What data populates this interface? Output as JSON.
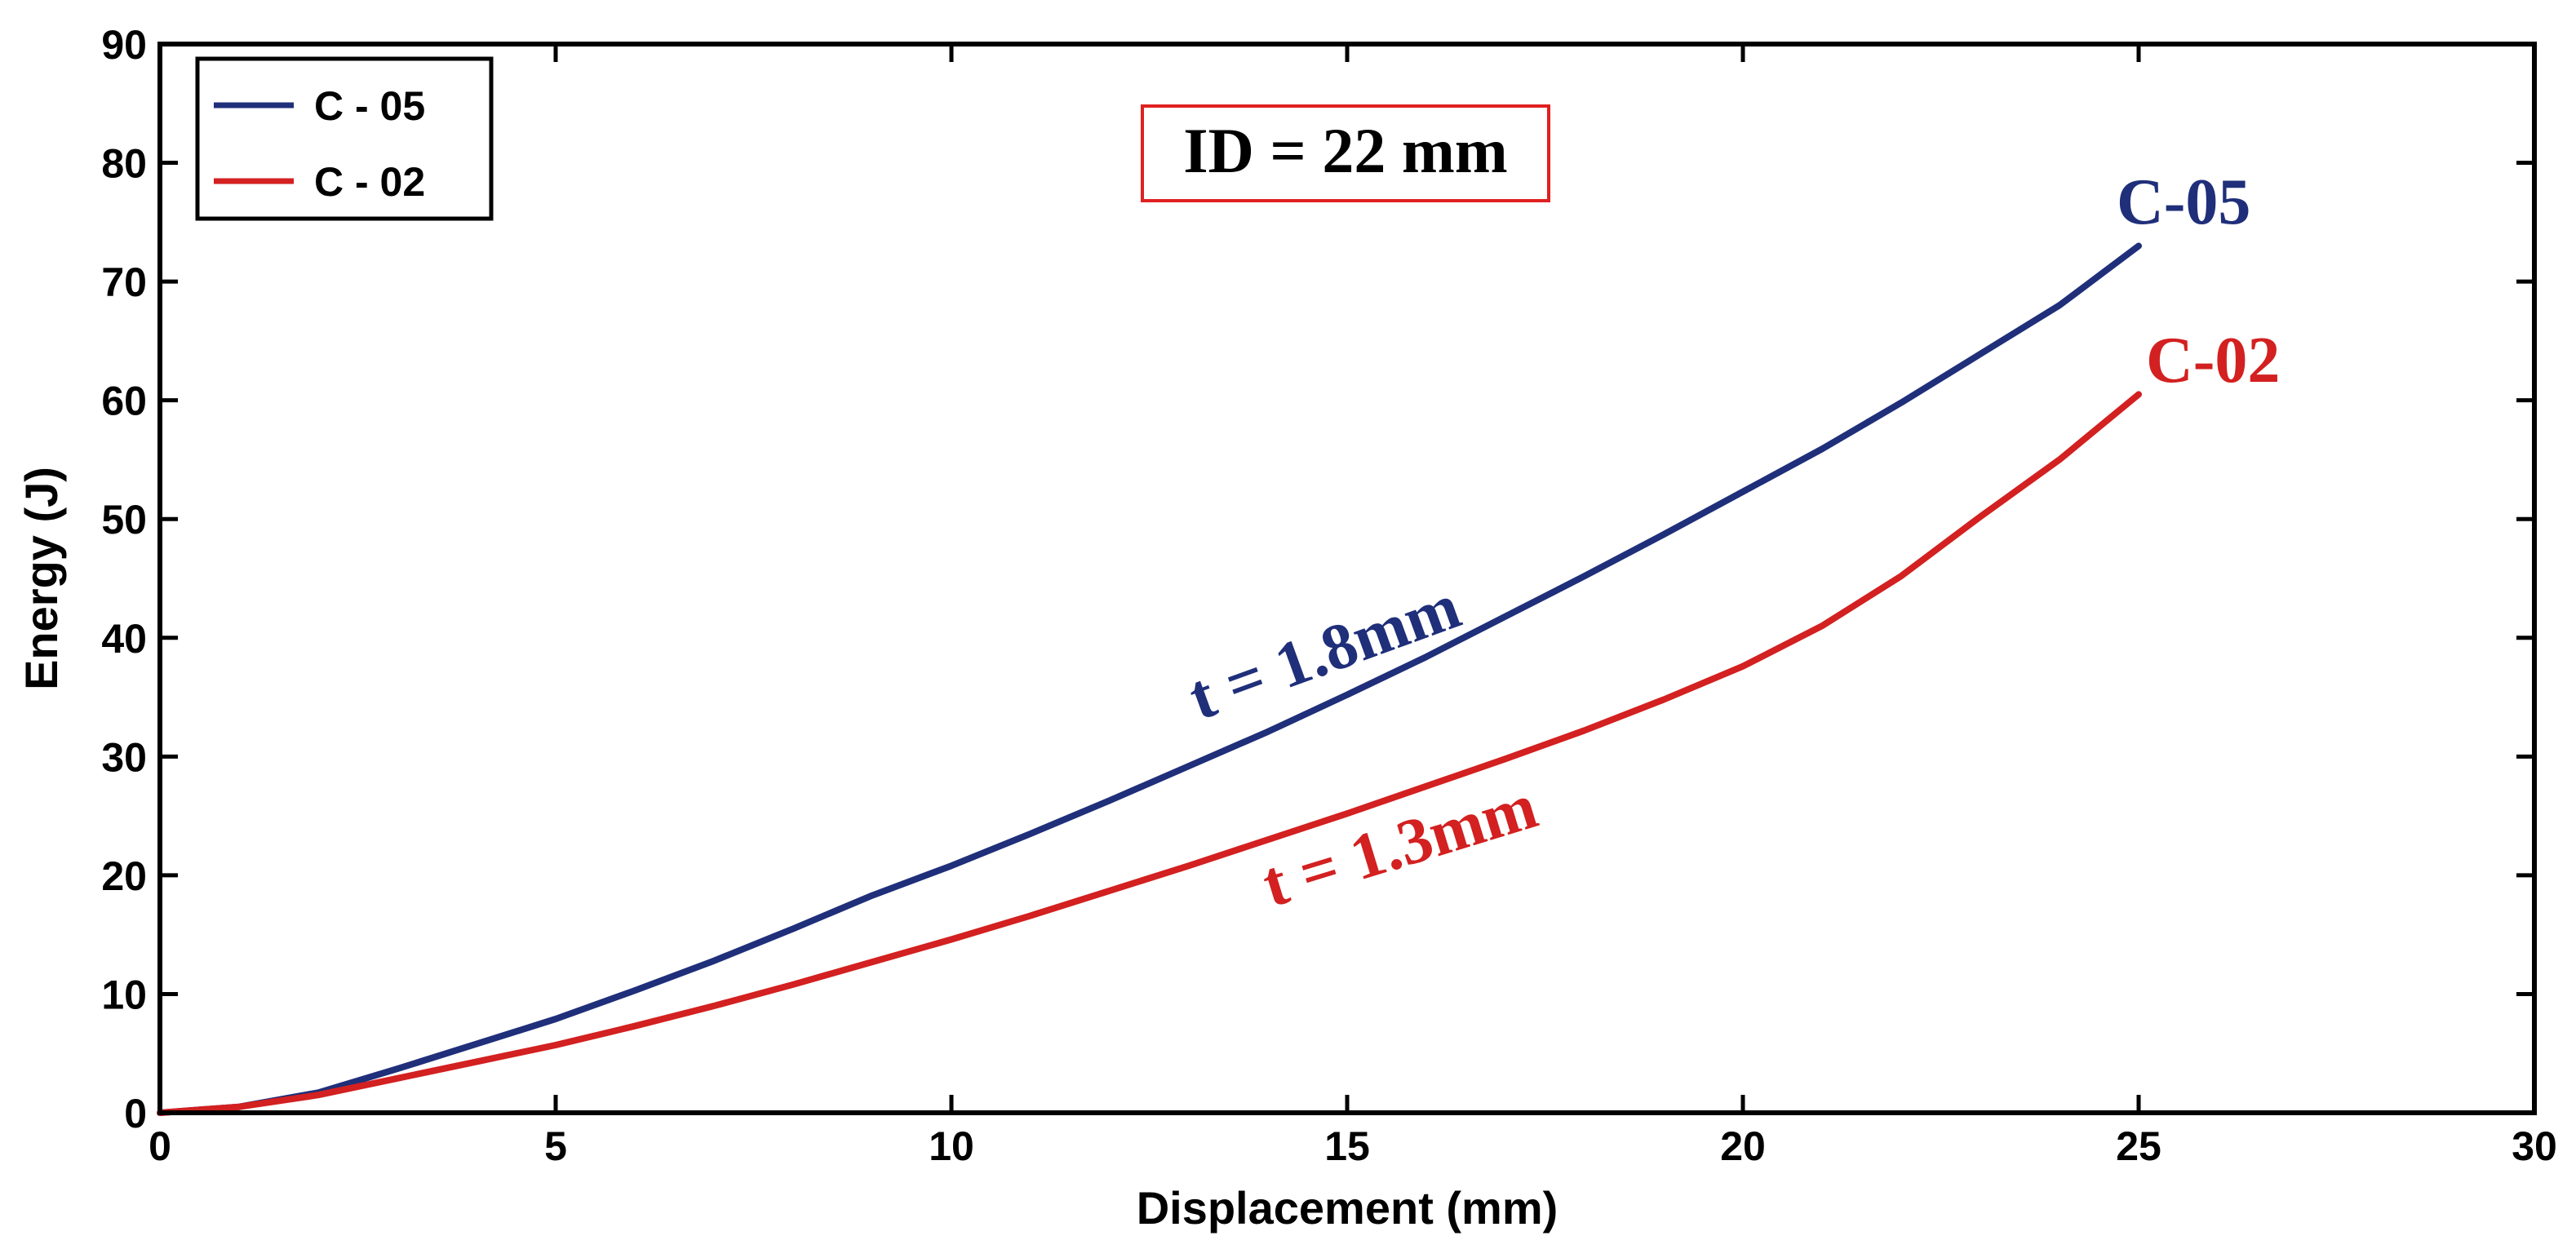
{
  "chart_data": {
    "type": "line",
    "title": "",
    "xlabel": "Displacement (mm)",
    "ylabel": "Energy (J)",
    "xlim": [
      0,
      30
    ],
    "ylim": [
      0,
      90
    ],
    "xticks": [
      0,
      5,
      10,
      15,
      20,
      25,
      30
    ],
    "yticks": [
      0,
      10,
      20,
      30,
      40,
      50,
      60,
      70,
      80,
      90
    ],
    "grid": false,
    "legend_position": "top-left",
    "annotation_box": "ID = 22 mm",
    "series": [
      {
        "name": "C - 05",
        "end_label": "C-05",
        "inline_label": "t = 1.8mm",
        "color": "#1f2f7a",
        "x": [
          0,
          1,
          2,
          3,
          4,
          5,
          6,
          7,
          8,
          9,
          10,
          11,
          12,
          13,
          14,
          15,
          16,
          17,
          18,
          19,
          20,
          21,
          22,
          23,
          24,
          25
        ],
        "y": [
          0,
          0.5,
          1.7,
          3.7,
          5.8,
          7.9,
          10.3,
          12.8,
          15.5,
          18.3,
          20.8,
          23.5,
          26.3,
          29.2,
          32.1,
          35.2,
          38.4,
          41.8,
          45.2,
          48.7,
          52.3,
          55.9,
          59.8,
          63.9,
          68.0,
          73.0
        ]
      },
      {
        "name": "C - 02",
        "end_label": "C-02",
        "inline_label": "t = 1.3mm",
        "color": "#d32020",
        "x": [
          0,
          1,
          2,
          3,
          4,
          5,
          6,
          7,
          8,
          9,
          10,
          11,
          12,
          13,
          14,
          15,
          16,
          17,
          18,
          19,
          20,
          21,
          22,
          23,
          24,
          25
        ],
        "y": [
          0,
          0.5,
          1.5,
          2.9,
          4.3,
          5.7,
          7.3,
          9.0,
          10.8,
          12.7,
          14.6,
          16.6,
          18.7,
          20.8,
          23.0,
          25.2,
          27.5,
          29.8,
          32.2,
          34.8,
          37.6,
          41.0,
          45.2,
          50.2,
          55.0,
          60.5
        ]
      }
    ]
  }
}
